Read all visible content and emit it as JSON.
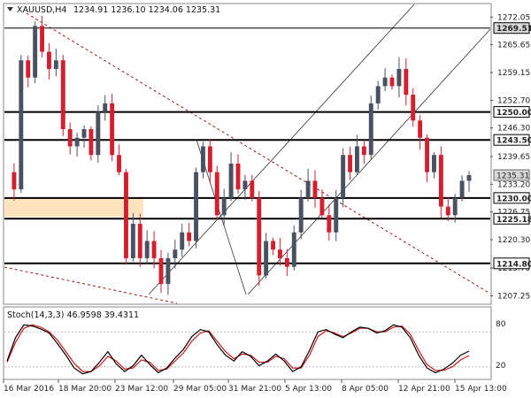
{
  "header": {
    "symbol": "XAUUSD,H4",
    "ohlc": "1234.91 1236.10 1234.06 1235.31"
  },
  "indicator": {
    "label": "Stoch(14,3,3) 46.9598 39.4311",
    "level_high_label": "80",
    "level_low_label": "20"
  },
  "colors": {
    "bull": "#4a5160",
    "bear": "#d2202f",
    "zone": "#fde4bf",
    "level_line": "#000000",
    "trend_dotted": "#a01818",
    "channel": "#333333",
    "stoch_main": "#000000",
    "stoch_signal": "#d01818",
    "grid_box": "#888888",
    "price_badge": "#d8d8d8"
  },
  "chart_data": [
    {
      "type": "candlestick",
      "instrument": "XAUUSD",
      "timeframe": "H4",
      "y_ticks": [
        "1272.05",
        "1265.65",
        "1259.15",
        "1252.70",
        "1246.30",
        "1239.65",
        "1233.20",
        "1226.75",
        "1220.30",
        "1213.70",
        "1207.25"
      ],
      "ylim": [
        1205.5,
        1275.0
      ],
      "x_tick_labels": [
        "16 Mar 2016",
        "18 Mar 20:00",
        "23 Mar 12:00",
        "29 Mar 05:00",
        "31 Mar 21:00",
        "5 Apr 13:00",
        "8 Apr 05:00",
        "12 Apr 21:00",
        "15 Apr 13:00"
      ],
      "levels": [
        {
          "value": 1269.51,
          "label": "1269.51",
          "style": "thin"
        },
        {
          "value": 1250.0,
          "label": "1250.00",
          "style": "thick"
        },
        {
          "value": 1243.5,
          "label": "1243.50",
          "style": "thick"
        },
        {
          "value": 1230.0,
          "label": "1230.00",
          "style": "thick"
        },
        {
          "value": 1225.18,
          "label": "1225.18",
          "style": "thick"
        },
        {
          "value": 1214.8,
          "label": "1214.80",
          "style": "thick"
        }
      ],
      "current_price": {
        "value": 1235.31,
        "label": "1235.31"
      },
      "zone": {
        "from": 1225.6,
        "to": 1230.0
      },
      "close_path": [
        1236,
        1232,
        1262,
        1258,
        1270,
        1264,
        1260,
        1262,
        1246,
        1242,
        1244,
        1246,
        1240,
        1250,
        1252,
        1240,
        1236,
        1216,
        1224,
        1216,
        1220,
        1216,
        1210,
        1216,
        1218,
        1222,
        1220,
        1236,
        1242,
        1236,
        1226,
        1230,
        1238,
        1232,
        1234,
        1230,
        1212,
        1220,
        1218,
        1216,
        1214,
        1222,
        1230,
        1234,
        1230,
        1226,
        1222,
        1230,
        1240,
        1236,
        1242,
        1240,
        1252,
        1256,
        1258,
        1256,
        1260,
        1254,
        1248,
        1244,
        1236,
        1240,
        1228,
        1226,
        1230,
        1234,
        1235.31
      ]
    },
    {
      "type": "line",
      "name": "Stoch(14,3,3)",
      "ylim": [
        0,
        100
      ],
      "levels": [
        80,
        20
      ],
      "main": [
        30,
        70,
        92,
        90,
        85,
        78,
        60,
        40,
        18,
        8,
        12,
        28,
        46,
        25,
        12,
        22,
        40,
        24,
        10,
        18,
        35,
        50,
        72,
        84,
        80,
        58,
        40,
        30,
        46,
        38,
        22,
        30,
        42,
        30,
        12,
        20,
        48,
        80,
        84,
        76,
        70,
        80,
        88,
        86,
        78,
        82,
        92,
        88,
        70,
        40,
        18,
        10,
        16,
        26,
        40,
        46.96
      ],
      "signal": [
        28,
        62,
        86,
        92,
        88,
        80,
        66,
        46,
        26,
        12,
        12,
        22,
        38,
        30,
        16,
        18,
        32,
        28,
        14,
        16,
        30,
        44,
        64,
        78,
        82,
        64,
        46,
        34,
        42,
        40,
        28,
        28,
        38,
        34,
        18,
        18,
        40,
        72,
        82,
        78,
        72,
        78,
        86,
        86,
        80,
        80,
        88,
        90,
        76,
        48,
        24,
        14,
        14,
        20,
        32,
        39.43
      ]
    }
  ]
}
